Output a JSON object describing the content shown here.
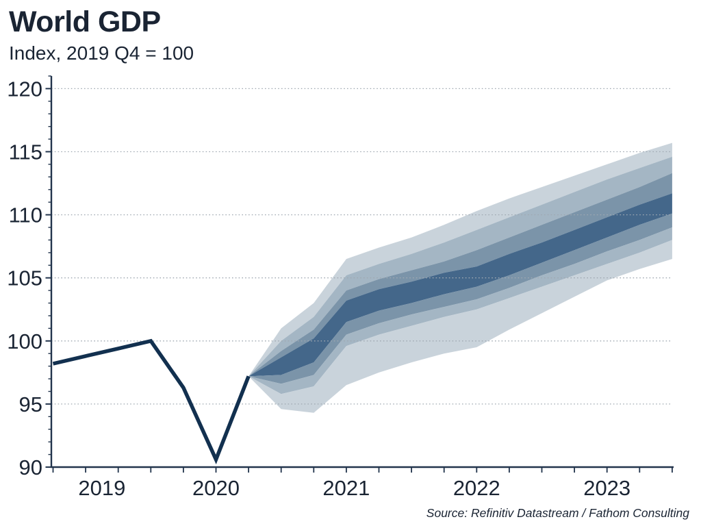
{
  "header": {
    "title": "World GDP",
    "subtitle": "Index, 2019 Q4 = 100"
  },
  "source_note": "Source: Refinitiv Datastream / Fathom Consulting",
  "chart_data": {
    "type": "area",
    "subtype": "fan-chart",
    "title": "World GDP",
    "subtitle": "Index, 2019 Q4 = 100",
    "source": "Source: Refinitiv Datastream / Fathom Consulting",
    "xlabel": "",
    "ylabel": "Index, 2019 Q4 = 100",
    "ylim": [
      90,
      121
    ],
    "yticks": [
      90,
      95,
      100,
      105,
      110,
      115,
      120
    ],
    "y_minor_tick_step": 1,
    "grid": "dotted horizontal gridlines at major y ticks, drawn over bands",
    "legend": "none",
    "quarters": [
      "2019 Q1",
      "2019 Q2",
      "2019 Q3",
      "2019 Q4",
      "2020 Q1",
      "2020 Q2",
      "2020 Q3",
      "2020 Q4",
      "2021 Q1",
      "2021 Q2",
      "2021 Q3",
      "2021 Q4",
      "2022 Q1",
      "2022 Q2",
      "2022 Q3",
      "2022 Q4",
      "2023 Q1",
      "2023 Q2",
      "2023 Q3",
      "2023 Q4"
    ],
    "x_year_labels": [
      {
        "label": "2019",
        "quarter_index": 1.5
      },
      {
        "label": "2020",
        "quarter_index": 5
      },
      {
        "label": "2021",
        "quarter_index": 9
      },
      {
        "label": "2022",
        "quarter_index": 13
      },
      {
        "label": "2023",
        "quarter_index": 17
      }
    ],
    "historical": {
      "name": "World GDP, actual",
      "start_index": 0,
      "values": [
        98.2,
        98.8,
        99.4,
        100.0,
        96.3,
        90.6,
        97.2
      ]
    },
    "forecast_fan": {
      "name": "Forecast uncertainty fan",
      "start_index": 6,
      "boundaries_top_to_bottom": [
        [
          97.2,
          101.0,
          103.0,
          106.5,
          107.4,
          108.2,
          109.2,
          110.3,
          111.3,
          112.2,
          113.1,
          114.0,
          114.9,
          115.7
        ],
        [
          97.2,
          100.0,
          101.9,
          105.2,
          106.1,
          106.9,
          107.8,
          108.8,
          109.8,
          110.8,
          111.8,
          112.8,
          113.7,
          114.6
        ],
        [
          97.2,
          99.2,
          100.9,
          104.0,
          104.9,
          105.6,
          106.3,
          107.2,
          108.2,
          109.2,
          110.2,
          111.2,
          112.2,
          113.3
        ],
        [
          97.2,
          98.7,
          100.2,
          103.2,
          104.1,
          104.7,
          105.4,
          105.9,
          106.9,
          107.8,
          108.8,
          109.8,
          110.8,
          111.7
        ],
        [
          97.2,
          97.3,
          98.3,
          101.5,
          102.4,
          103.0,
          103.7,
          104.3,
          105.2,
          106.2,
          107.2,
          108.2,
          109.2,
          110.1
        ],
        [
          97.2,
          96.6,
          97.3,
          100.5,
          101.4,
          102.1,
          102.7,
          103.3,
          104.2,
          105.2,
          106.1,
          107.1,
          108.0,
          109.0
        ],
        [
          97.2,
          95.8,
          96.4,
          99.6,
          100.5,
          101.2,
          101.9,
          102.5,
          103.4,
          104.3,
          105.2,
          106.1,
          107.0,
          108.0
        ],
        [
          97.2,
          94.6,
          94.3,
          96.5,
          97.5,
          98.3,
          99.0,
          99.5,
          100.9,
          102.2,
          103.5,
          104.8,
          105.7,
          106.5
        ]
      ],
      "band_colors_center_to_outer": [
        "#44678a",
        "#7b94a9",
        "#a4b6c4",
        "#c9d3db"
      ]
    },
    "colors": {
      "line": "#12304f",
      "text": "#1a2433",
      "axis": "#22344c",
      "gridline": "#9fa8b1",
      "background": "#ffffff"
    }
  }
}
